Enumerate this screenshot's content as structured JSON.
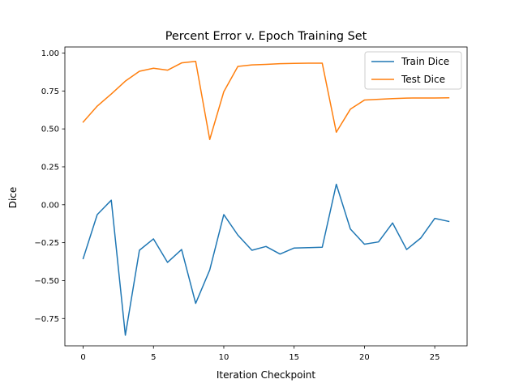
{
  "chart_data": {
    "type": "line",
    "title": "Percent Error v. Epoch Training Set",
    "xlabel": "Iteration Checkpoint",
    "ylabel": "Dice",
    "xlim": [
      -1.3,
      27.3
    ],
    "ylim": [
      -0.93,
      1.04
    ],
    "x_ticks": [
      0,
      5,
      10,
      15,
      20,
      25
    ],
    "y_ticks": [
      -0.75,
      -0.5,
      -0.25,
      0.0,
      0.25,
      0.5,
      0.75,
      1.0
    ],
    "x_tick_labels": [
      "0",
      "5",
      "10",
      "15",
      "20",
      "25"
    ],
    "y_tick_labels": [
      "−0.75",
      "−0.50",
      "−0.25",
      "0.00",
      "0.25",
      "0.50",
      "0.75",
      "1.00"
    ],
    "grid": false,
    "legend_position": "top-right",
    "x": [
      0,
      1,
      2,
      3,
      4,
      5,
      6,
      7,
      8,
      9,
      10,
      11,
      12,
      13,
      14,
      15,
      16,
      17,
      18,
      19,
      20,
      21,
      22,
      23,
      24,
      25,
      26
    ],
    "series": [
      {
        "name": "Train Dice",
        "color": "#1f77b4",
        "values": [
          -0.355,
          -0.065,
          0.03,
          -0.86,
          -0.3,
          -0.225,
          -0.38,
          -0.295,
          -0.65,
          -0.43,
          -0.065,
          -0.2,
          -0.3,
          -0.275,
          -0.325,
          -0.285,
          -0.283,
          -0.28,
          0.135,
          -0.16,
          -0.26,
          -0.245,
          -0.12,
          -0.295,
          -0.22,
          -0.09,
          -0.11
        ]
      },
      {
        "name": "Test Dice",
        "color": "#ff7f0e",
        "values": [
          0.545,
          0.65,
          0.73,
          0.815,
          0.88,
          0.9,
          0.887,
          0.935,
          0.945,
          0.43,
          0.745,
          0.912,
          0.922,
          0.925,
          0.93,
          0.932,
          0.933,
          0.933,
          0.478,
          0.63,
          0.69,
          0.695,
          0.7,
          0.703,
          0.704,
          0.704,
          0.705
        ]
      }
    ]
  }
}
